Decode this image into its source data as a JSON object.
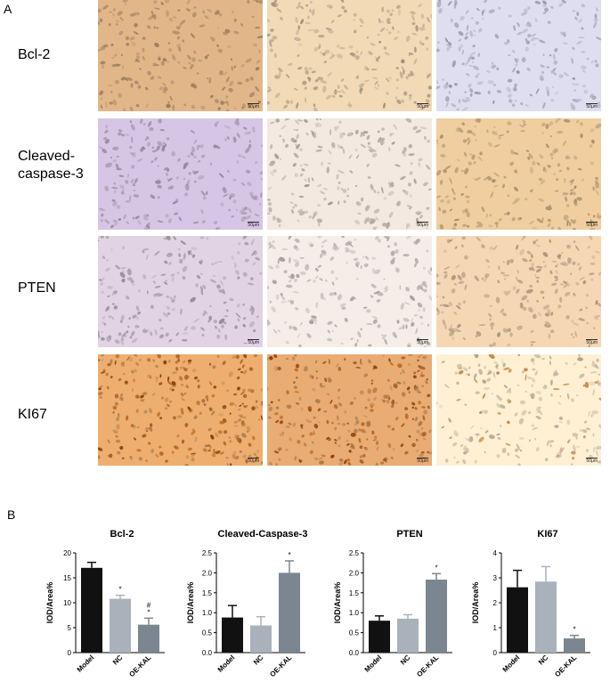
{
  "panels": {
    "a": "A",
    "b": "B"
  },
  "micrographs": {
    "rows": [
      {
        "label": "Bcl-2",
        "tints": [
          "#c9a37a",
          "#d8c3a3",
          "#c7c6d6"
        ]
      },
      {
        "label": "Cleaved-\ncaspase-3",
        "tints": [
          "#bfb0cc",
          "#d9d0c8",
          "#d6b88e"
        ]
      },
      {
        "label": "PTEN",
        "tints": [
          "#c9bccb",
          "#dcd4cf",
          "#dcc0a1"
        ]
      },
      {
        "label": "KI67",
        "tints": [
          "#d49b63",
          "#d09a66",
          "#e6d6bd"
        ]
      }
    ],
    "scale_bar_text": [
      "50μm",
      "50μm",
      "50μm"
    ]
  },
  "chart_data": [
    {
      "type": "bar",
      "title": "Bcl-2",
      "ylabel": "IOD/Area%",
      "categories": [
        "Model",
        "NC",
        "OE-KAL"
      ],
      "values": [
        17.0,
        10.8,
        5.6
      ],
      "errors": [
        1.1,
        0.7,
        1.3
      ],
      "annotations": [
        "",
        "*",
        "#\n*"
      ],
      "yticks": [
        "0",
        "5",
        "10",
        "15",
        "20"
      ],
      "ylim": [
        0,
        20
      ],
      "colors": [
        "#111111",
        "#a9b2bb",
        "#7b8690"
      ]
    },
    {
      "type": "bar",
      "title": "Cleaved-Caspase-3",
      "ylabel": "IOD/Area%",
      "categories": [
        "Model",
        "NC",
        "OE-KAL"
      ],
      "values": [
        0.88,
        0.68,
        2.0
      ],
      "errors": [
        0.3,
        0.22,
        0.3
      ],
      "annotations": [
        "",
        "",
        "*"
      ],
      "yticks": [
        "0.0",
        "0.5",
        "1.0",
        "1.5",
        "2.0",
        "2.5"
      ],
      "ylim": [
        0,
        2.5
      ],
      "colors": [
        "#111111",
        "#a9b2bb",
        "#7b8690"
      ]
    },
    {
      "type": "bar",
      "title": "PTEN",
      "ylabel": "IOD/Area%",
      "categories": [
        "Model",
        "NC",
        "OE-KAL"
      ],
      "values": [
        0.8,
        0.85,
        1.83
      ],
      "errors": [
        0.12,
        0.1,
        0.15
      ],
      "annotations": [
        "",
        "",
        "*"
      ],
      "yticks": [
        "0.0",
        "0.5",
        "1.0",
        "1.5",
        "2.0",
        "2.5"
      ],
      "ylim": [
        0,
        2.5
      ],
      "colors": [
        "#111111",
        "#a9b2bb",
        "#7b8690"
      ]
    },
    {
      "type": "bar",
      "title": "KI67",
      "ylabel": "IOD/Area%",
      "categories": [
        "Model",
        "NC",
        "OE-KAL"
      ],
      "values": [
        2.62,
        2.85,
        0.57
      ],
      "errors": [
        0.68,
        0.6,
        0.12
      ],
      "annotations": [
        "",
        "",
        "*"
      ],
      "yticks": [
        "0",
        "1",
        "2",
        "3",
        "4"
      ],
      "ylim": [
        0,
        4
      ],
      "colors": [
        "#111111",
        "#a9b2bb",
        "#7b8690"
      ]
    }
  ]
}
